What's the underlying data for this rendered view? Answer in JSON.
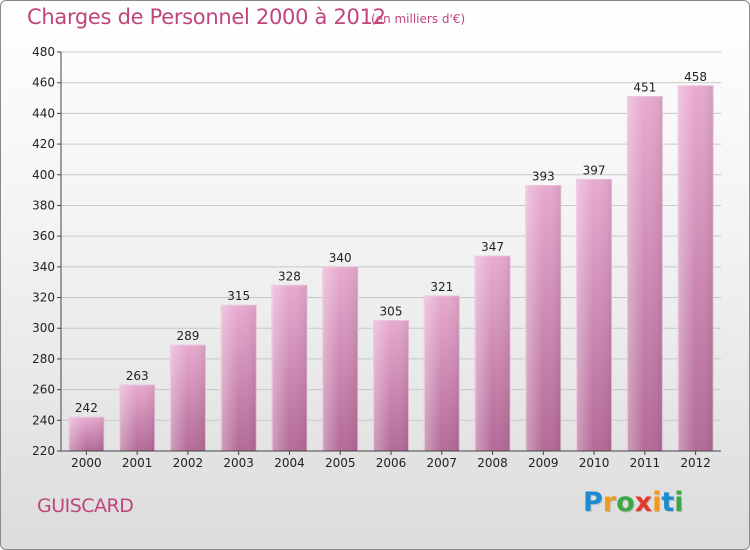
{
  "title": "Charges de Personnel 2000 à 2012",
  "subtitle": "(en milliers d'€)",
  "place": "GUISCARD",
  "logo": {
    "text": "Proxiti",
    "letters": [
      {
        "ch": "P",
        "color": "#1e8bd0"
      },
      {
        "ch": "r",
        "color": "#f39a1d"
      },
      {
        "ch": "o",
        "color": "#3aa845"
      },
      {
        "ch": "x",
        "color": "#e23a2c"
      },
      {
        "ch": "i",
        "color": "#f39a1d"
      },
      {
        "ch": "t",
        "color": "#1e8bd0"
      },
      {
        "ch": "i",
        "color": "#3aa845"
      }
    ]
  },
  "colors": {
    "accent": "#c0457a",
    "bar_top": "#e6a7cd",
    "bar_bottom": "#b56c98"
  },
  "chart_data": {
    "type": "bar",
    "title": "Charges de Personnel 2000 à 2012",
    "subtitle": "(en milliers d'€)",
    "categories": [
      "2000",
      "2001",
      "2002",
      "2003",
      "2004",
      "2005",
      "2006",
      "2007",
      "2008",
      "2009",
      "2010",
      "2011",
      "2012"
    ],
    "values": [
      242,
      263,
      289,
      315,
      328,
      340,
      305,
      321,
      347,
      393,
      397,
      451,
      458
    ],
    "ylim": [
      220,
      480
    ],
    "yticks": [
      220,
      240,
      260,
      280,
      300,
      320,
      340,
      360,
      380,
      400,
      420,
      440,
      460,
      480
    ],
    "grid": true,
    "xlabel": "",
    "ylabel": ""
  }
}
